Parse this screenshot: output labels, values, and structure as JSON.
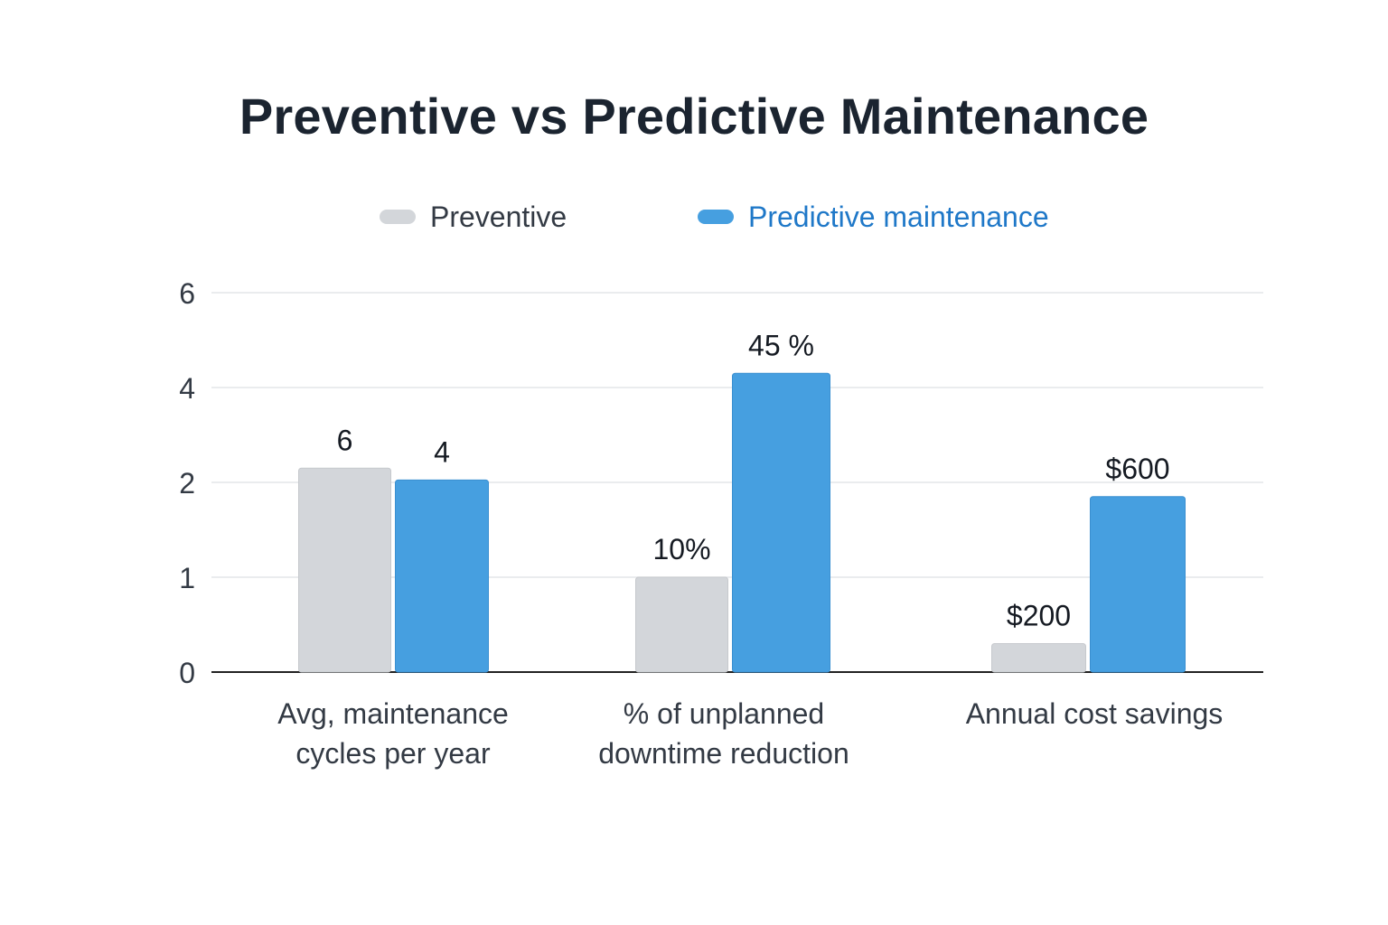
{
  "title": "Preventive vs Predictive Maintenance",
  "colors": {
    "preventive": "#d3d6da",
    "predictive": "#469fe0",
    "predictive_text": "#1f78c8",
    "axis": "#222222",
    "grid": "#e4e6e9",
    "text": "#333a44"
  },
  "chart_data": {
    "type": "bar",
    "title": "Preventive vs Predictive Maintenance",
    "xlabel": "",
    "ylabel": "",
    "legend_position": "top",
    "grid": true,
    "y_ticks": [
      {
        "label": "0",
        "value": 0
      },
      {
        "label": "1",
        "value": 1
      },
      {
        "label": "2",
        "value": 2
      },
      {
        "label": "4",
        "value": 4
      },
      {
        "label": "6",
        "value": 6
      }
    ],
    "ylim": [
      0,
      6
    ],
    "categories": [
      [
        "Avg, maintenance",
        "cycles per year"
      ],
      [
        "% of unplanned",
        "downtime reduction"
      ],
      [
        "Annual cost savings"
      ]
    ],
    "series": [
      {
        "name": "Preventive",
        "values": [
          2.3,
          1.0,
          0.3
        ],
        "data_labels": [
          "6",
          "10%",
          "$200"
        ]
      },
      {
        "name": "Predictive maintenance",
        "values": [
          2.05,
          4.3,
          1.85
        ],
        "data_labels": [
          "4",
          "45 %",
          "$600"
        ]
      }
    ]
  }
}
